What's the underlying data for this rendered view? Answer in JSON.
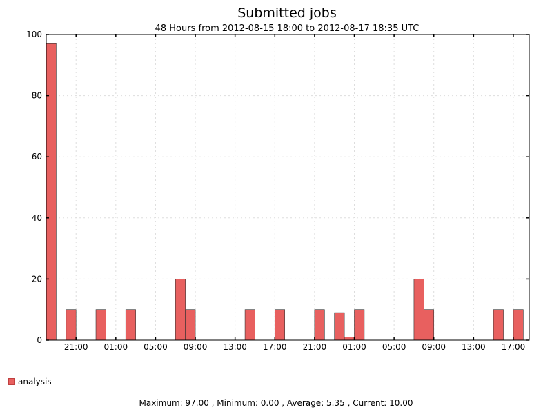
{
  "chart_data": {
    "type": "bar",
    "title": "Submitted jobs",
    "subtitle": "48 Hours from 2012-08-15 18:00 to 2012-08-17 18:35 UTC",
    "ylim": [
      0,
      100
    ],
    "yticks": [
      0,
      20,
      40,
      60,
      80,
      100
    ],
    "x_range_hours": [
      18,
      66.6
    ],
    "xticks": [
      {
        "hour": 21,
        "label": "21:00"
      },
      {
        "hour": 25,
        "label": "01:00"
      },
      {
        "hour": 29,
        "label": "05:00"
      },
      {
        "hour": 33,
        "label": "09:00"
      },
      {
        "hour": 37,
        "label": "13:00"
      },
      {
        "hour": 41,
        "label": "17:00"
      },
      {
        "hour": 45,
        "label": "21:00"
      },
      {
        "hour": 49,
        "label": "01:00"
      },
      {
        "hour": 53,
        "label": "05:00"
      },
      {
        "hour": 57,
        "label": "09:00"
      },
      {
        "hour": 61,
        "label": "13:00"
      },
      {
        "hour": 65,
        "label": "17:00"
      }
    ],
    "grid": true,
    "series": [
      {
        "name": "analysis",
        "color": "#e8605f",
        "points": [
          {
            "hour": 18,
            "value": 97
          },
          {
            "hour": 20,
            "value": 10
          },
          {
            "hour": 23,
            "value": 10
          },
          {
            "hour": 26,
            "value": 10
          },
          {
            "hour": 31,
            "value": 20
          },
          {
            "hour": 32,
            "value": 10
          },
          {
            "hour": 38,
            "value": 10
          },
          {
            "hour": 41,
            "value": 10
          },
          {
            "hour": 45,
            "value": 10
          },
          {
            "hour": 47,
            "value": 9
          },
          {
            "hour": 48,
            "value": 1
          },
          {
            "hour": 49,
            "value": 10
          },
          {
            "hour": 55,
            "value": 20
          },
          {
            "hour": 56,
            "value": 10
          },
          {
            "hour": 63,
            "value": 10
          },
          {
            "hour": 65,
            "value": 10
          }
        ]
      }
    ],
    "legend": "bottom-left"
  },
  "stats_text": "Maximum: 97.00 , Minimum: 0.00 , Average: 5.35 , Current: 10.00"
}
